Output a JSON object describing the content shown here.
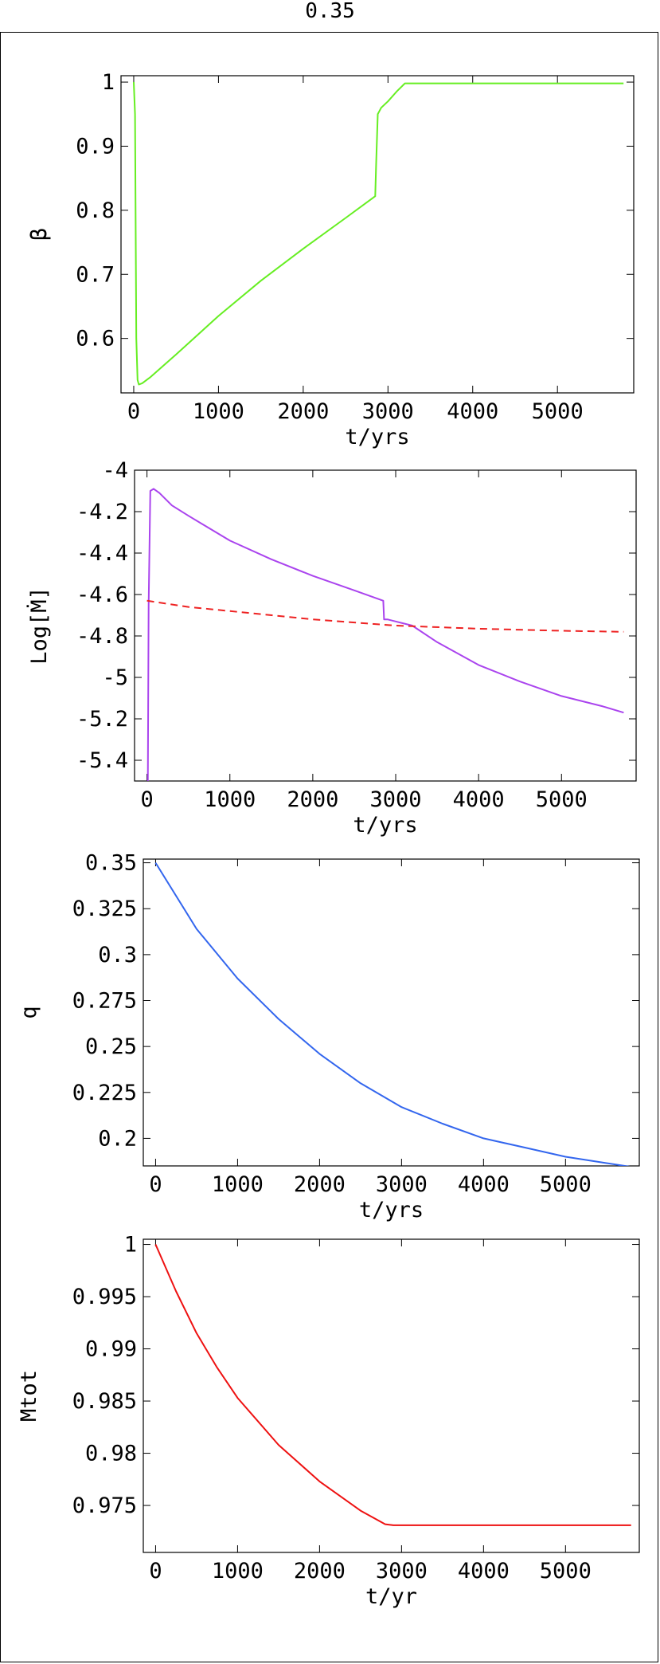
{
  "page": {
    "title": "0.35"
  },
  "chart_data": [
    {
      "type": "line",
      "ylabel": "β",
      "xlabel": "t/yrs",
      "xlim": [
        -150,
        5900
      ],
      "ylim": [
        0.515,
        1.01
      ],
      "xticks": [
        0,
        1000,
        2000,
        3000,
        4000,
        5000
      ],
      "xtick_labels": [
        "0",
        "1000",
        "2000",
        "3000",
        "4000",
        "5000"
      ],
      "yticks": [
        0.6,
        0.7,
        0.8,
        0.9,
        1.0
      ],
      "ytick_labels": [
        "0.6",
        "0.7",
        "0.8",
        "0.9",
        "1"
      ],
      "series": [
        {
          "color": "#66ee22",
          "dashed": false,
          "x": [
            0,
            15,
            30,
            45,
            60,
            100,
            200,
            500,
            1000,
            1500,
            2000,
            2500,
            2850,
            2860,
            2880,
            2920,
            3000,
            3100,
            3200,
            4000,
            5000,
            5780
          ],
          "y": [
            1.0,
            0.95,
            0.6,
            0.535,
            0.528,
            0.53,
            0.54,
            0.575,
            0.635,
            0.69,
            0.74,
            0.788,
            0.822,
            0.87,
            0.95,
            0.96,
            0.97,
            0.985,
            0.998,
            0.998,
            0.998,
            0.998
          ]
        }
      ]
    },
    {
      "type": "line",
      "ylabel": "Log[Ṁ]",
      "xlabel": "t/yrs",
      "xlim": [
        -150,
        5900
      ],
      "ylim": [
        -5.5,
        -4.0
      ],
      "xticks": [
        0,
        1000,
        2000,
        3000,
        4000,
        5000
      ],
      "xtick_labels": [
        "0",
        "1000",
        "2000",
        "3000",
        "4000",
        "5000"
      ],
      "yticks": [
        -5.4,
        -5.2,
        -5.0,
        -4.8,
        -4.6,
        -4.4,
        -4.2,
        -4.0
      ],
      "ytick_labels": [
        "-5.4",
        "-5.2",
        "-5",
        "-4.8",
        "-4.6",
        "-4.4",
        "-4.2",
        "-4"
      ],
      "series": [
        {
          "color": "#aa44ee",
          "dashed": false,
          "x": [
            10,
            20,
            40,
            80,
            150,
            300,
            500,
            1000,
            1500,
            2000,
            2500,
            2850,
            2860,
            2900,
            3000,
            3200,
            3500,
            4000,
            4500,
            5000,
            5500,
            5750
          ],
          "y": [
            -5.5,
            -4.65,
            -4.1,
            -4.09,
            -4.11,
            -4.17,
            -4.22,
            -4.34,
            -4.43,
            -4.51,
            -4.58,
            -4.63,
            -4.72,
            -4.72,
            -4.73,
            -4.75,
            -4.83,
            -4.94,
            -5.02,
            -5.09,
            -5.14,
            -5.17
          ]
        },
        {
          "color": "#ee2222",
          "dashed": true,
          "x": [
            0,
            500,
            1000,
            2000,
            3000,
            4000,
            5000,
            5750
          ],
          "y": [
            -4.63,
            -4.66,
            -4.68,
            -4.72,
            -4.75,
            -4.765,
            -4.775,
            -4.78
          ]
        }
      ]
    },
    {
      "type": "line",
      "ylabel": "q",
      "xlabel": "t/yrs",
      "xlim": [
        -150,
        5900
      ],
      "ylim": [
        0.185,
        0.352
      ],
      "xticks": [
        0,
        1000,
        2000,
        3000,
        4000,
        5000
      ],
      "xtick_labels": [
        "0",
        "1000",
        "2000",
        "3000",
        "4000",
        "5000"
      ],
      "yticks": [
        0.2,
        0.225,
        0.25,
        0.275,
        0.3,
        0.325,
        0.35
      ],
      "ytick_labels": [
        "0.2",
        "0.225",
        "0.25",
        "0.275",
        "0.3",
        "0.325",
        "0.35"
      ],
      "series": [
        {
          "color": "#3366ee",
          "dashed": false,
          "x": [
            0,
            500,
            1000,
            1500,
            2000,
            2500,
            3000,
            3500,
            4000,
            4500,
            5000,
            5500,
            5800
          ],
          "y": [
            0.35,
            0.314,
            0.287,
            0.265,
            0.246,
            0.23,
            0.217,
            0.208,
            0.2,
            0.195,
            0.19,
            0.1865,
            0.1845
          ]
        }
      ]
    },
    {
      "type": "line",
      "ylabel": "Mtot",
      "xlabel": "t/yr",
      "xlim": [
        -150,
        5900
      ],
      "ylim": [
        0.9705,
        1.0005
      ],
      "xticks": [
        0,
        1000,
        2000,
        3000,
        4000,
        5000
      ],
      "xtick_labels": [
        "0",
        "1000",
        "2000",
        "3000",
        "4000",
        "5000"
      ],
      "yticks": [
        0.975,
        0.98,
        0.985,
        0.99,
        0.995,
        1.0
      ],
      "ytick_labels": [
        "0.975",
        "0.98",
        "0.985",
        "0.99",
        "0.995",
        "1"
      ],
      "series": [
        {
          "color": "#ee1111",
          "dashed": false,
          "x": [
            0,
            250,
            500,
            750,
            1000,
            1500,
            2000,
            2500,
            2800,
            2900,
            3000,
            4000,
            5000,
            5800
          ],
          "y": [
            1.0,
            0.9955,
            0.9915,
            0.9882,
            0.9853,
            0.9808,
            0.9773,
            0.9745,
            0.9732,
            0.9731,
            0.9731,
            0.9731,
            0.9731,
            0.9731
          ]
        }
      ]
    }
  ]
}
